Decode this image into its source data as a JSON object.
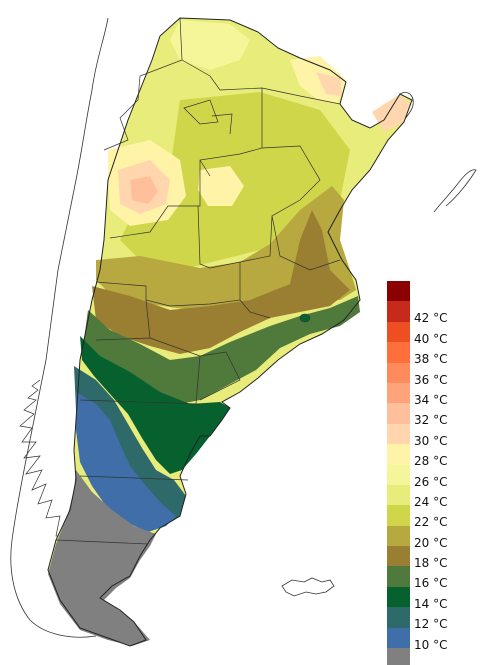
{
  "legend": {
    "bands": [
      {
        "color": "#8b0000"
      },
      {
        "color": "#c52a1a",
        "label": "42 °C"
      },
      {
        "color": "#ee4f22",
        "label": "40 °C"
      },
      {
        "color": "#ff6f3c",
        "label": "38 °C"
      },
      {
        "color": "#ff8a5c",
        "label": "36 °C"
      },
      {
        "color": "#ffa37a",
        "label": "34 °C"
      },
      {
        "color": "#ffbf9a",
        "label": "32 °C"
      },
      {
        "color": "#ffd6ad",
        "label": "30 °C"
      },
      {
        "color": "#fff3a8",
        "label": "28 °C"
      },
      {
        "color": "#f5f59a",
        "label": "26 °C"
      },
      {
        "color": "#e8ec7a",
        "label": "24 °C"
      },
      {
        "color": "#cfd64a",
        "label": "22 °C"
      },
      {
        "color": "#b8a840",
        "label": "20 °C"
      },
      {
        "color": "#9a7f33",
        "label": "18 °C"
      },
      {
        "color": "#4f7a3c",
        "label": "16 °C"
      },
      {
        "color": "#06612e",
        "label": "14 °C"
      },
      {
        "color": "#2f6a6a",
        "label": "12 °C"
      },
      {
        "color": "#3f6ea8",
        "label": "10 °C"
      },
      {
        "color": "#808080"
      }
    ]
  }
}
